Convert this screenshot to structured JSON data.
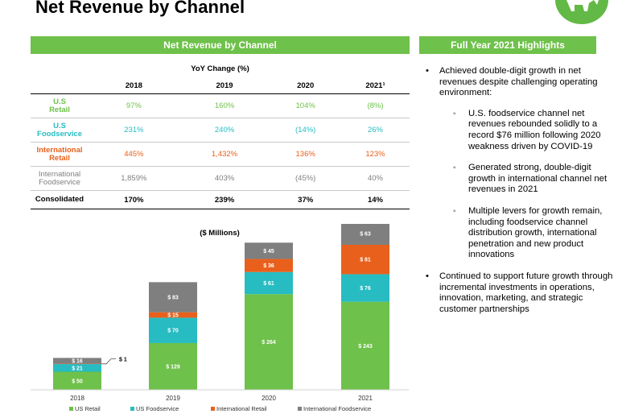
{
  "page_title": "Net Revenue by Channel",
  "left_banner": "Net Revenue by Channel",
  "right_banner": "Full Year 2021 Highlights",
  "colors": {
    "green": "#6ec14a",
    "teal": "#27bcc2",
    "orange": "#e8601c",
    "gray": "#7f7f7f"
  },
  "yoy_table": {
    "title": "YoY Change (%)",
    "headers": [
      "2018",
      "2019",
      "2020",
      "2021¹"
    ],
    "rows": [
      {
        "label_line1": "U.S",
        "label_line2": "Retail",
        "values": [
          "97%",
          "160%",
          "104%",
          "(8%)"
        ]
      },
      {
        "label_line1": "U.S",
        "label_line2": "Foodservice",
        "values": [
          "231%",
          "240%",
          "(14%)",
          "26%"
        ]
      },
      {
        "label_line1": "International",
        "label_line2": "Retail",
        "values": [
          "445%",
          "1,432%",
          "136%",
          "123%"
        ]
      },
      {
        "label_line1": "International",
        "label_line2": "Foodservice",
        "values": [
          "1,859%",
          "403%",
          "(45%)",
          "40%"
        ]
      },
      {
        "label_line1": "Consolidated",
        "label_line2": "",
        "values": [
          "170%",
          "239%",
          "37%",
          "14%"
        ]
      }
    ]
  },
  "chart_data": {
    "type": "bar",
    "stacked": true,
    "title": "($ Millions)",
    "categories": [
      "2018",
      "2019",
      "2020",
      "2021"
    ],
    "series": [
      {
        "name": "US Retail",
        "values": [
          50,
          129,
          264,
          243
        ],
        "labels": [
          "$ 50",
          "$ 129",
          "$ 264",
          "$ 243"
        ]
      },
      {
        "name": "US Foodservice",
        "values": [
          21,
          70,
          61,
          76
        ],
        "labels": [
          "$ 21",
          "$ 70",
          "$ 61",
          "$ 76"
        ]
      },
      {
        "name": "International Retail",
        "values": [
          1,
          15,
          36,
          81
        ],
        "labels": [
          "$ 1",
          "$ 15",
          "$ 36",
          "$ 81"
        ]
      },
      {
        "name": "International Foodservice",
        "values": [
          16,
          83,
          45,
          63
        ],
        "labels": [
          "$ 16",
          "$ 83",
          "$ 45",
          "$ 63"
        ]
      }
    ],
    "legend_position": "bottom",
    "ylim": [
      0,
      450
    ]
  },
  "highlights": {
    "b1": "Achieved double-digit growth in net revenues despite challenging operating environment:",
    "b1_sub": [
      "U.S. foodservice channel net revenues rebounded solidly to a record $76 million following 2020 weakness driven by COVID-19",
      "Generated strong, double-digit growth in international channel net revenues in 2021",
      "Multiple levers for growth remain, including foodservice channel distribution growth, international penetration and new product innovations"
    ],
    "b2": "Continued to support future growth through incremental investments in operations, innovation, marketing, and strategic customer partnerships"
  }
}
